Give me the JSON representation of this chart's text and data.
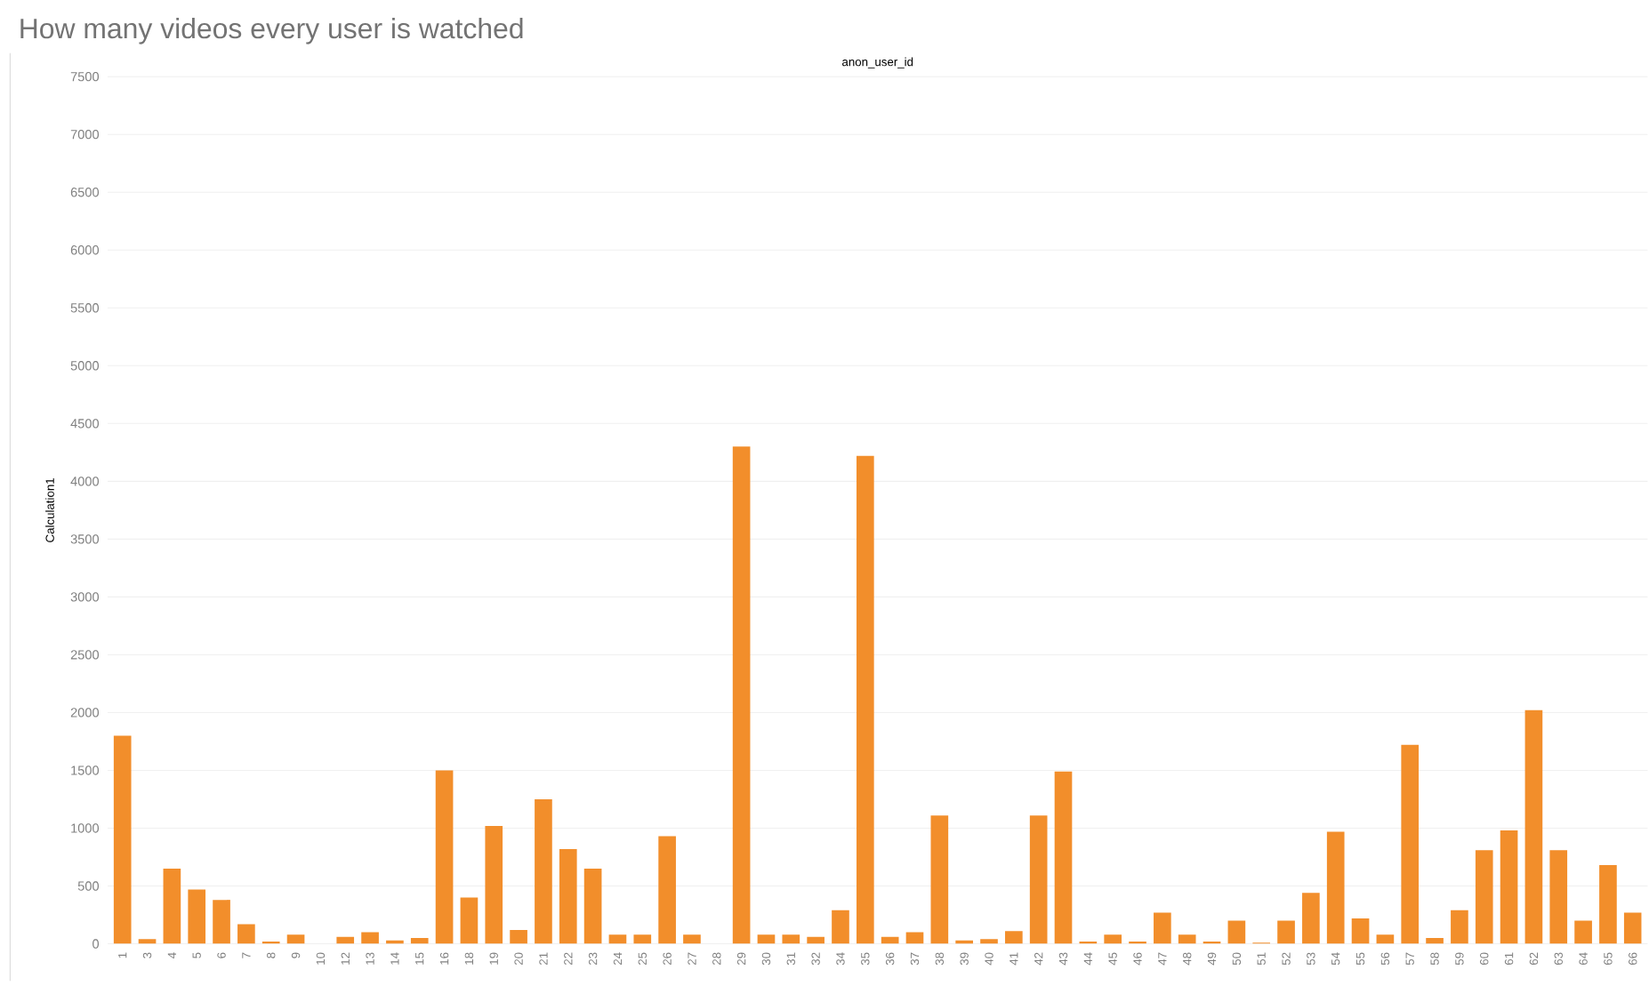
{
  "chart_data": {
    "type": "bar",
    "title": "How many videos every user is watched",
    "xlabel": "anon_user_id",
    "ylabel": "Calculation1",
    "categories": [
      "1",
      "3",
      "4",
      "5",
      "6",
      "7",
      "8",
      "9",
      "10",
      "12",
      "13",
      "14",
      "15",
      "16",
      "18",
      "19",
      "20",
      "21",
      "22",
      "23",
      "24",
      "25",
      "26",
      "27",
      "28",
      "29",
      "30",
      "31",
      "32",
      "34",
      "35",
      "36",
      "37",
      "38",
      "39",
      "40",
      "41",
      "42",
      "43",
      "44",
      "45",
      "46",
      "47",
      "48",
      "49",
      "50",
      "51",
      "52",
      "53",
      "54",
      "55",
      "56",
      "57",
      "58",
      "59",
      "60",
      "61",
      "62",
      "63",
      "64",
      "65",
      "66"
    ],
    "values": [
      1800,
      40,
      650,
      470,
      380,
      170,
      20,
      80,
      0,
      60,
      100,
      30,
      50,
      1500,
      400,
      1020,
      120,
      1250,
      820,
      650,
      80,
      80,
      930,
      80,
      0,
      4300,
      80,
      80,
      60,
      290,
      4220,
      60,
      100,
      1110,
      30,
      40,
      110,
      1110,
      1490,
      20,
      80,
      20,
      270,
      80,
      20,
      200,
      10,
      200,
      440,
      970,
      220,
      80,
      1720,
      50,
      290,
      810,
      980,
      2020,
      810,
      200,
      680,
      270
    ],
    "color": "#f28e2b",
    "ylim": [
      0,
      7500
    ],
    "yticks": [
      0,
      500,
      1000,
      1500,
      2000,
      2500,
      3000,
      3500,
      4000,
      4500,
      5000,
      5500,
      6000,
      6500,
      7000,
      7500
    ],
    "grid": "y"
  }
}
